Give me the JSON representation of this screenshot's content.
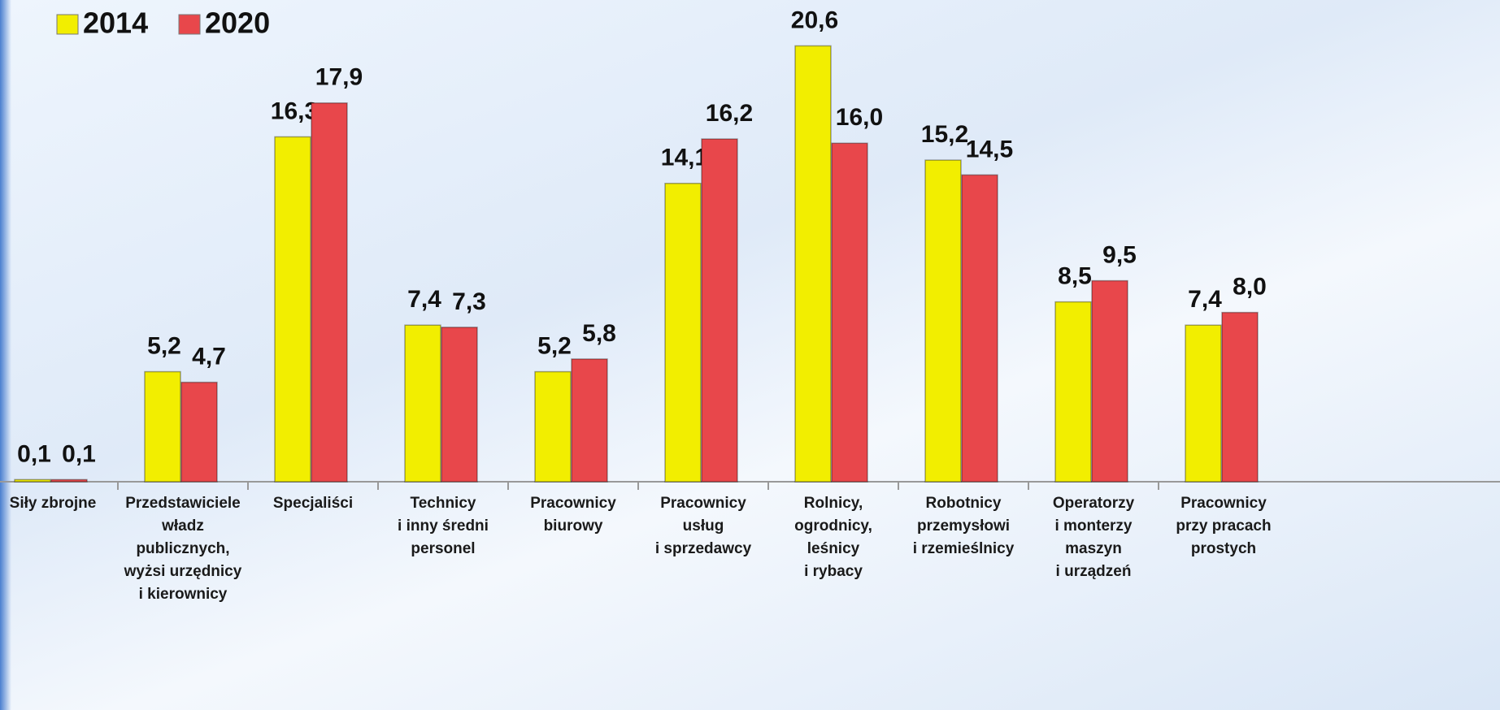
{
  "chart_data": {
    "type": "bar",
    "categories": [
      "Siły zbrojne",
      "Przedstawiciele\nwładz\npublicznych,\nwyżsi urzędnicy\ni kierownicy",
      "Specjaliści",
      "Technicy\ni inny średni\npersonel",
      "Pracownicy\nbiurowy",
      "Pracownicy\nusług\ni sprzedawcy",
      "Rolnicy,\nogrodnicy,\nleśnicy\ni rybacy",
      "Robotnicy\nprzemysłowi\ni rzemieślnicy",
      "Operatorzy\ni monterzy\nmaszyn\ni urządzeń",
      "Pracownicy\nprzy pracach\nprostych"
    ],
    "series": [
      {
        "name": "2014",
        "color": "#f2ee00",
        "values": [
          0.1,
          5.2,
          16.3,
          7.4,
          5.2,
          14.1,
          20.6,
          15.2,
          8.5,
          7.4
        ],
        "value_labels": [
          "0,1",
          "5,2",
          "16,3",
          "7,4",
          "5,2",
          "14,1",
          "20,6",
          "15,2",
          "8,5",
          "7,4"
        ]
      },
      {
        "name": "2020",
        "color": "#e8474b",
        "values": [
          0.1,
          4.7,
          17.9,
          7.3,
          5.8,
          16.2,
          16.0,
          14.5,
          9.5,
          8.0
        ],
        "value_labels": [
          "0,1",
          "4,7",
          "17,9",
          "7,3",
          "5,8",
          "16,2",
          "16,0",
          "14,5",
          "9,5",
          "8,0"
        ]
      }
    ],
    "ylim": [
      0,
      22
    ],
    "legend": "top-left"
  }
}
